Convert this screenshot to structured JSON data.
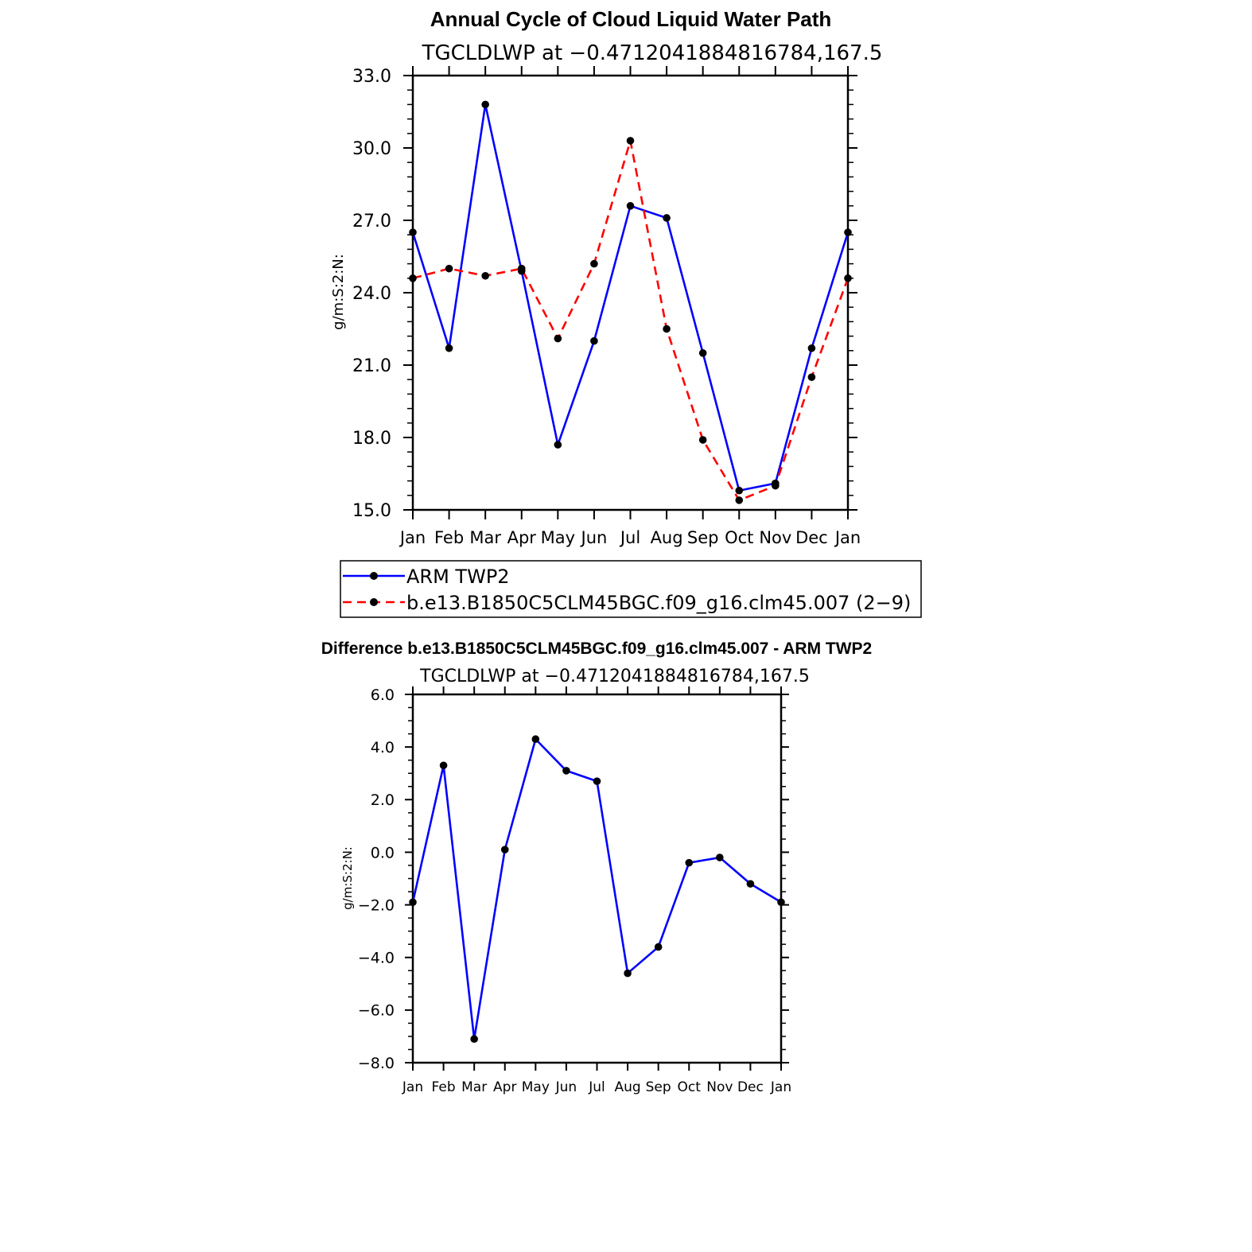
{
  "chart_data": [
    {
      "type": "line",
      "title": "Annual Cycle of Cloud Liquid Water Path",
      "subtitle": "TGCLDLWP at −0.4712041884816784,167.5",
      "ylabel": "g/m:S:2:N:",
      "xlabel": "",
      "ylim": [
        15.0,
        33.0
      ],
      "yticks": [
        "15.0",
        "18.0",
        "21.0",
        "24.0",
        "27.0",
        "30.0",
        "33.0"
      ],
      "categories": [
        "Jan",
        "Feb",
        "Mar",
        "Apr",
        "May",
        "Jun",
        "Jul",
        "Aug",
        "Sep",
        "Oct",
        "Nov",
        "Dec",
        "Jan"
      ],
      "series": [
        {
          "name": "ARM TWP2",
          "color": "#0000ff",
          "dash": "solid",
          "values": [
            26.5,
            21.7,
            31.8,
            24.9,
            17.7,
            22.0,
            27.6,
            27.1,
            21.5,
            15.8,
            16.1,
            21.7,
            26.5
          ]
        },
        {
          "name": "b.e13.B1850C5CLM45BGC.f09_g16.clm45.007 (2−9)",
          "color": "#ff0000",
          "dash": "dashed",
          "values": [
            24.6,
            25.0,
            24.7,
            25.0,
            22.1,
            25.2,
            30.3,
            22.5,
            17.9,
            15.4,
            16.0,
            20.5,
            24.6
          ]
        }
      ],
      "legend": "bottom",
      "grid": false
    },
    {
      "type": "line",
      "title": "Difference b.e13.B1850C5CLM45BGC.f09_g16.clm45.007 - ARM TWP2",
      "subtitle": "TGCLDLWP at −0.4712041884816784,167.5",
      "ylabel": "g/m:S:2:N:",
      "xlabel": "",
      "ylim": [
        -8.0,
        6.0
      ],
      "yticks": [
        "−8.0",
        "−6.0",
        "−4.0",
        "−2.0",
        "0.0",
        "2.0",
        "4.0",
        "6.0"
      ],
      "categories": [
        "Jan",
        "Feb",
        "Mar",
        "Apr",
        "May",
        "Jun",
        "Jul",
        "Aug",
        "Sep",
        "Oct",
        "Nov",
        "Dec",
        "Jan"
      ],
      "series": [
        {
          "name": "Difference",
          "color": "#0000ff",
          "dash": "solid",
          "values": [
            -1.9,
            3.3,
            -7.1,
            0.1,
            4.3,
            3.1,
            2.7,
            -4.6,
            -3.6,
            -0.4,
            -0.2,
            -1.2,
            -1.9
          ]
        }
      ],
      "grid": false
    }
  ]
}
